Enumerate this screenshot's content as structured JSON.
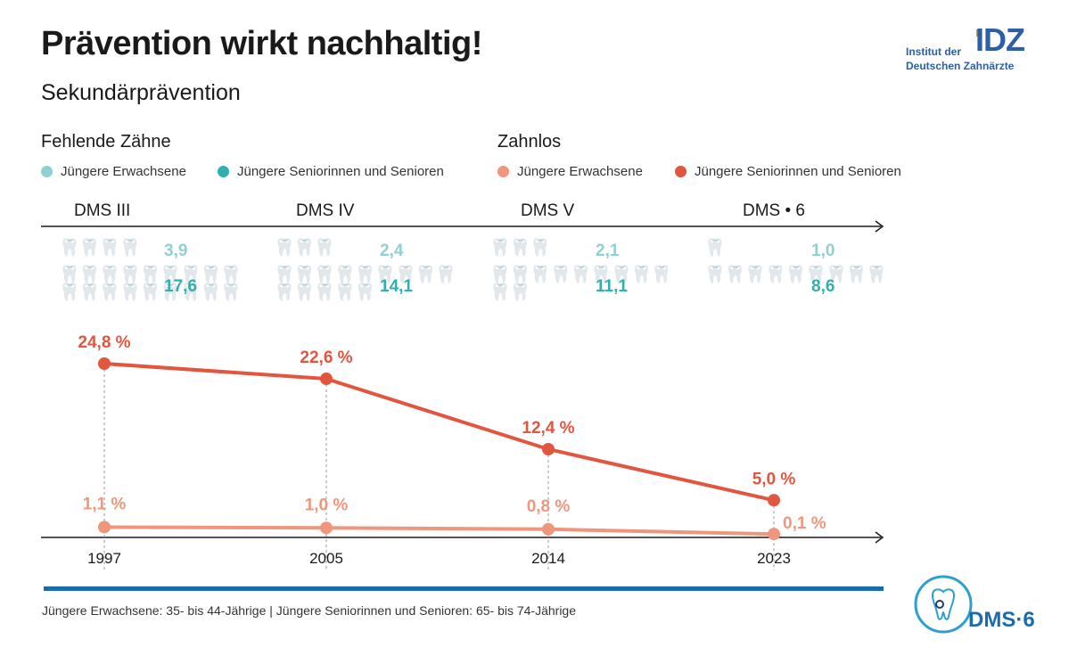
{
  "title": "Prävention wirkt nachhaltig!",
  "subtitle": "Sekundärprävention",
  "left_section": {
    "title": "Fehlende Zähne",
    "legend": [
      {
        "label": "Jüngere Erwachsene",
        "color": "#8fd0d2"
      },
      {
        "label": "Jüngere Seniorinnen und Senioren",
        "color": "#2eb0b0"
      }
    ]
  },
  "right_section": {
    "title": "Zahnlos",
    "legend": [
      {
        "label": "Jüngere Erwachsene",
        "color": "#f0967c"
      },
      {
        "label": "Jüngere Seniorinnen und Senioren",
        "color": "#e2553f"
      }
    ]
  },
  "studies": [
    "DMS III",
    "DMS IV",
    "DMS V",
    "DMS • 6"
  ],
  "missing_teeth": {
    "young_adults": [
      "3,9",
      "2,4",
      "2,1",
      "1,0"
    ],
    "seniors": [
      "17,6",
      "14,1",
      "11,1",
      "8,6"
    ]
  },
  "footer_note": "Jüngere Erwachsene: 35- bis 44-Jährige | Jüngere Seniorinnen und Senioren: 65- bis 74-Jährige",
  "logo": {
    "line1": "Institut der",
    "line2": "Deutschen Zahnärzte",
    "mark": "IDZ"
  },
  "badge": {
    "text": "DMS·6"
  },
  "colors": {
    "teal_light": "#8fd0d2",
    "teal": "#2eb0b0",
    "salmon": "#f0967c",
    "red": "#e2553f",
    "blue": "#1a6cb0",
    "logo_blue": "#2d5fa6",
    "logo_orange": "#f39200"
  },
  "chart_data": {
    "type": "line",
    "title": "Zahnlos",
    "categories": [
      "1997",
      "2005",
      "2014",
      "2023"
    ],
    "series": [
      {
        "name": "Jüngere Seniorinnen und Senioren",
        "values": [
          24.8,
          22.6,
          12.4,
          5.0
        ],
        "labels": [
          "24,8 %",
          "22,6 %",
          "12,4 %",
          "5,0 %"
        ],
        "color": "#e2553f"
      },
      {
        "name": "Jüngere Erwachsene",
        "values": [
          1.1,
          1.0,
          0.8,
          0.1
        ],
        "labels": [
          "1,1 %",
          "1,0 %",
          "0,8 %",
          "0,1 %"
        ],
        "color": "#f0967c"
      }
    ],
    "ylim": [
      0,
      25
    ]
  }
}
